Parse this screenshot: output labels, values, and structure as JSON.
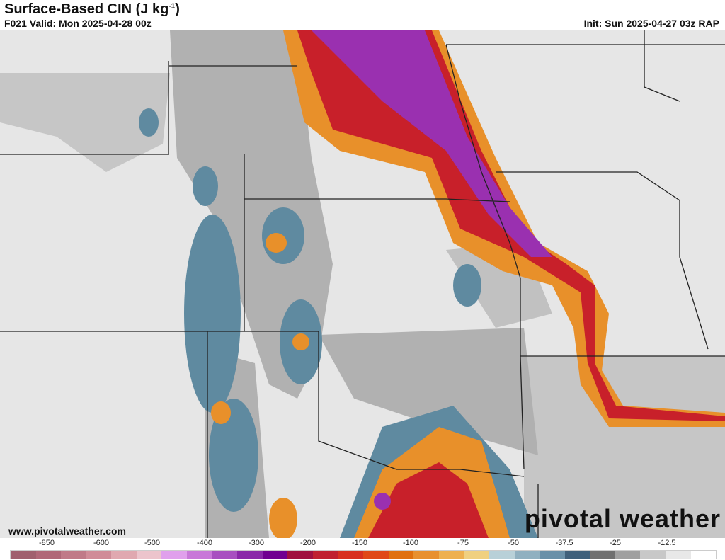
{
  "header": {
    "title": "Surface-Based CIN (J kg",
    "title_sup": "-1",
    "title_end": ")",
    "valid": "F021 Valid: Mon 2025-04-28 00z",
    "init": "Init: Sun 2025-04-27 03z RAP"
  },
  "footer": {
    "website": "www.pivotalweather.com",
    "logo": "pivotal weather"
  },
  "colorbar": {
    "labels": [
      "-850",
      "-600",
      "-500",
      "-400",
      "-300",
      "-200",
      "-150",
      "-100",
      "-75",
      "-50",
      "-37.5",
      "-25",
      "-12.5"
    ],
    "colors": [
      "#a0606e",
      "#b06878",
      "#c07a88",
      "#d08c98",
      "#e0a8b0",
      "#ecc4cc",
      "#e0a0ec",
      "#c878d8",
      "#a850c0",
      "#8a28a8",
      "#700090",
      "#a01040",
      "#c02030",
      "#d83020",
      "#e04818",
      "#e07010",
      "#e89030",
      "#eeb050",
      "#f0d080",
      "#b8d0d8",
      "#90b0c0",
      "#6a90a8",
      "#40607a",
      "#707070",
      "#a0a0a0",
      "#c8c8c8",
      "#e8e8e8",
      "#ffffff"
    ]
  },
  "colors": {
    "background": "#e4e4e4",
    "gray": "#9a9a9a",
    "blue": "#5f8aa0",
    "orange": "#e8902a",
    "red": "#c8202a",
    "purple": "#9a30b0"
  }
}
